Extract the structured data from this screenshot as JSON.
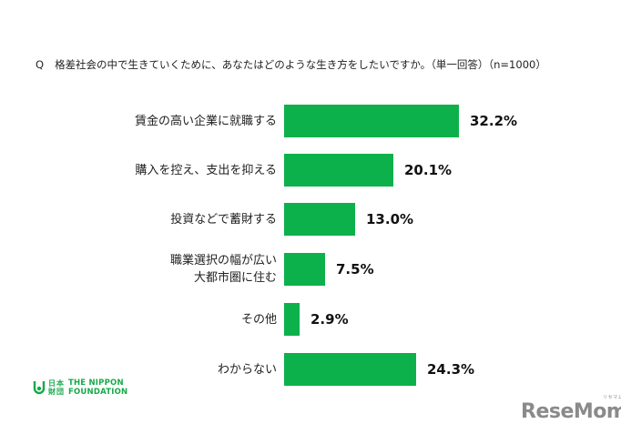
{
  "question": {
    "prefix": "Q",
    "text": "格差社会の中で生きていくために、あなたはどのような生き方をしたいですか。（単一回答）（n=1000）"
  },
  "chart_data": {
    "type": "bar",
    "orientation": "horizontal",
    "title": "格差社会の中で生きていくために、あなたはどのような生き方をしたいですか。（単一回答）（n=1000）",
    "categories": [
      "賃金の高い企業に就職する",
      "購入を控え、支出を抑える",
      "投資などで蓄財する",
      "職業選択の幅が広い大都市圏に住む",
      "その他",
      "わからない"
    ],
    "values": [
      32.2,
      20.1,
      13.0,
      7.5,
      2.9,
      24.3
    ],
    "value_labels": [
      "32.2%",
      "20.1%",
      "13.0%",
      "7.5%",
      "2.9%",
      "24.3%"
    ],
    "unit": "%",
    "xlabel": "",
    "ylabel": "",
    "grid": false,
    "legend": "none",
    "bar_color": "#0db14b"
  },
  "rows": [
    {
      "label_lines": [
        "賃金の高い企業に就職する"
      ],
      "value": "32.2%"
    },
    {
      "label_lines": [
        "購入を控え、支出を抑える"
      ],
      "value": "20.1%"
    },
    {
      "label_lines": [
        "投資などで蓄財する"
      ],
      "value": "13.0%"
    },
    {
      "label_lines": [
        "職業選択の幅が広い",
        "大都市圏に住む"
      ],
      "value": "7.5%"
    },
    {
      "label_lines": [
        "その他"
      ],
      "value": "2.9%"
    },
    {
      "label_lines": [
        "わからない"
      ],
      "value": "24.3%"
    }
  ],
  "logos": {
    "nippon_foundation": {
      "kanji": [
        "日",
        "本",
        "財",
        "団"
      ],
      "line1": "THE NIPPON",
      "line2": "FOUNDATION"
    },
    "resemom": {
      "text": "ReseMom",
      "kana": "リセマム"
    }
  }
}
